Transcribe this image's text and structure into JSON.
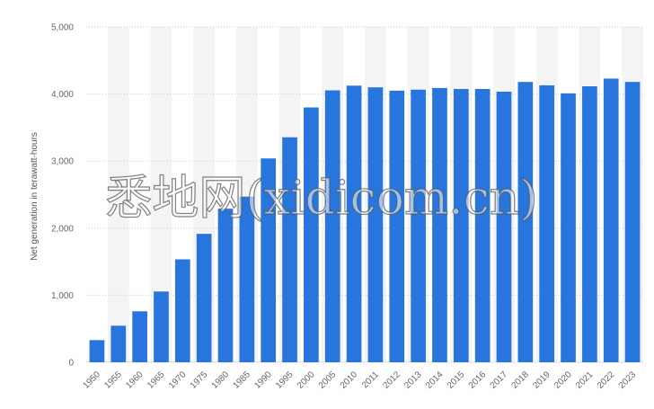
{
  "colors": {
    "bar": "#2876DD",
    "band": "#F4F4F4",
    "grid": "#CCCCCC"
  },
  "watermark": "悉地网(xidicom.cn)",
  "chart_data": {
    "type": "bar",
    "title": "",
    "xlabel": "",
    "ylabel": "Net generation in terawatt-hours",
    "ylim": [
      0,
      5000
    ],
    "yticks": [
      0,
      1000,
      2000,
      3000,
      4000,
      5000
    ],
    "ytick_labels": [
      "0",
      "1,000",
      "2,000",
      "3,000",
      "4,000",
      "5,000"
    ],
    "grid": "horizontal dotted",
    "legend": "none",
    "categories": [
      "1950",
      "1955",
      "1960",
      "1965",
      "1970",
      "1975",
      "1980",
      "1985",
      "1990",
      "1995",
      "2000",
      "2005",
      "2010",
      "2011",
      "2012",
      "2013",
      "2014",
      "2015",
      "2016",
      "2017",
      "2018",
      "2019",
      "2020",
      "2021",
      "2022",
      "2023"
    ],
    "values": [
      330,
      545,
      760,
      1055,
      1535,
      1915,
      2290,
      2470,
      3040,
      3355,
      3800,
      4055,
      4125,
      4100,
      4050,
      4065,
      4090,
      4075,
      4075,
      4035,
      4180,
      4130,
      4010,
      4115,
      4230,
      4180
    ]
  }
}
